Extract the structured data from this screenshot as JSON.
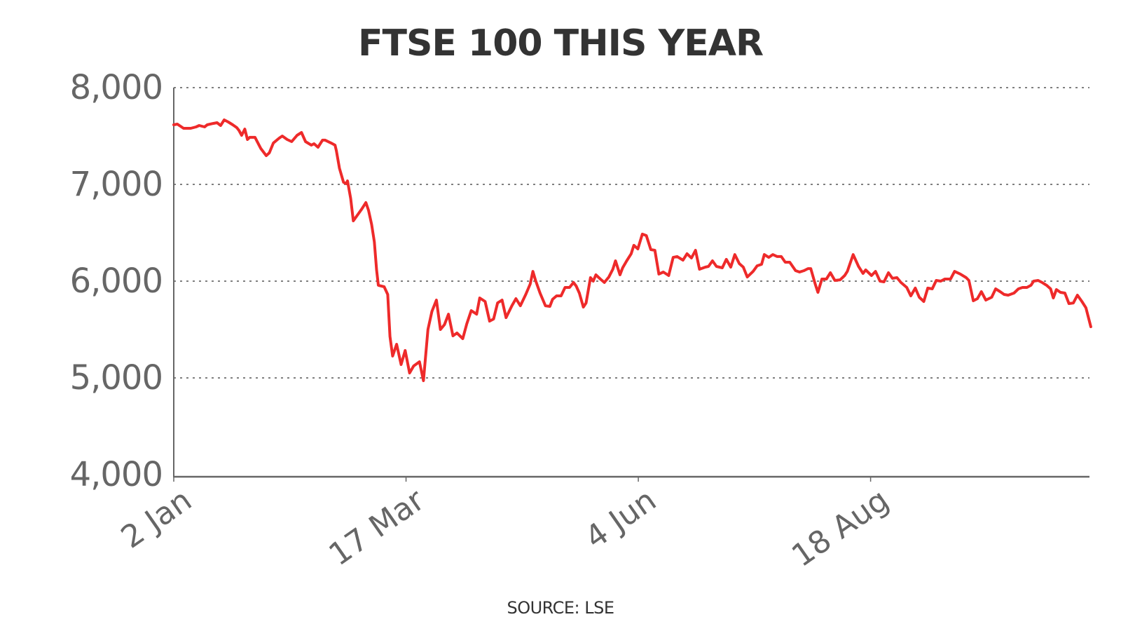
{
  "title": "FTSE 100 THIS YEAR",
  "source": "SOURCE: LSE",
  "colors": {
    "line": "#ee2a2a",
    "axis": "#666666",
    "grid": "#555555",
    "title": "#333333",
    "labels": "#666666"
  },
  "axes": {
    "y_ticks": [
      {
        "value": 8000,
        "label": "8,000"
      },
      {
        "value": 7000,
        "label": "7,000"
      },
      {
        "value": 6000,
        "label": "6,000"
      },
      {
        "value": 5000,
        "label": "5,000"
      },
      {
        "value": 4000,
        "label": "4,000"
      }
    ],
    "x_ticks": [
      {
        "x": 0,
        "label": "2 Jan"
      },
      {
        "x": 52,
        "label": "17 Mar"
      },
      {
        "x": 104,
        "label": "4 Jun"
      },
      {
        "x": 156,
        "label": "18 Aug"
      }
    ]
  },
  "chart_data": {
    "type": "line",
    "title": "FTSE 100 THIS YEAR",
    "xlabel": "",
    "ylabel": "",
    "ylim": [
      4000,
      8000
    ],
    "xlim": [
      0,
      205
    ],
    "grid": {
      "y": true,
      "x": false,
      "style": "dotted"
    },
    "legend": null,
    "annotations": [
      "SOURCE: LSE"
    ],
    "x_tick_labels": [
      "2 Jan",
      "17 Mar",
      "4 Jun",
      "18 Aug"
    ],
    "y_tick_labels": [
      "4,000",
      "5,000",
      "6,000",
      "7,000",
      "8,000"
    ],
    "series": [
      {
        "name": "FTSE 100",
        "x_unit": "trading days since 2 Jan",
        "points": [
          [
            0,
            7616
          ],
          [
            0.8,
            7623
          ],
          [
            2.2,
            7580
          ],
          [
            3.8,
            7580
          ],
          [
            5.0,
            7594
          ],
          [
            5.7,
            7609
          ],
          [
            6.9,
            7594
          ],
          [
            7.5,
            7616
          ],
          [
            8.8,
            7630
          ],
          [
            9.7,
            7638
          ],
          [
            10.5,
            7609
          ],
          [
            11.3,
            7667
          ],
          [
            12.2,
            7645
          ],
          [
            13.2,
            7616
          ],
          [
            14.1,
            7587
          ],
          [
            14.6,
            7558
          ],
          [
            15.2,
            7507
          ],
          [
            15.9,
            7572
          ],
          [
            16.5,
            7464
          ],
          [
            17.0,
            7486
          ],
          [
            18.2,
            7486
          ],
          [
            19.5,
            7370
          ],
          [
            20.7,
            7297
          ],
          [
            21.4,
            7326
          ],
          [
            22.3,
            7428
          ],
          [
            23.6,
            7478
          ],
          [
            24.3,
            7500
          ],
          [
            25.4,
            7464
          ],
          [
            26.4,
            7442
          ],
          [
            27.6,
            7507
          ],
          [
            28.6,
            7536
          ],
          [
            29.5,
            7442
          ],
          [
            30.8,
            7406
          ],
          [
            31.4,
            7420
          ],
          [
            32.3,
            7384
          ],
          [
            33.3,
            7457
          ],
          [
            33.9,
            7457
          ],
          [
            35.2,
            7428
          ],
          [
            36.1,
            7406
          ],
          [
            36.4,
            7348
          ],
          [
            37.1,
            7167
          ],
          [
            38.0,
            7022
          ],
          [
            38.6,
            7007
          ],
          [
            38.9,
            7036
          ],
          [
            39.6,
            6855
          ],
          [
            40.2,
            6623
          ],
          [
            41.1,
            6681
          ],
          [
            42.1,
            6746
          ],
          [
            43.0,
            6812
          ],
          [
            43.6,
            6732
          ],
          [
            44.3,
            6587
          ],
          [
            44.9,
            6406
          ],
          [
            45.4,
            6116
          ],
          [
            45.8,
            5957
          ],
          [
            47.1,
            5942
          ],
          [
            47.9,
            5862
          ],
          [
            48.4,
            5428
          ],
          [
            49.0,
            5225
          ],
          [
            49.9,
            5348
          ],
          [
            50.9,
            5138
          ],
          [
            51.8,
            5283
          ],
          [
            52.8,
            5051
          ],
          [
            53.7,
            5123
          ],
          [
            55.0,
            5167
          ],
          [
            55.9,
            4971
          ],
          [
            56.9,
            5500
          ],
          [
            57.8,
            5688
          ],
          [
            58.8,
            5804
          ],
          [
            59.7,
            5500
          ],
          [
            60.6,
            5551
          ],
          [
            61.5,
            5659
          ],
          [
            62.5,
            5435
          ],
          [
            63.4,
            5464
          ],
          [
            64.7,
            5406
          ],
          [
            65.6,
            5558
          ],
          [
            66.6,
            5696
          ],
          [
            67.8,
            5659
          ],
          [
            68.5,
            5826
          ],
          [
            69.7,
            5790
          ],
          [
            70.7,
            5587
          ],
          [
            71.6,
            5609
          ],
          [
            72.5,
            5775
          ],
          [
            73.5,
            5804
          ],
          [
            74.4,
            5623
          ],
          [
            75.7,
            5746
          ],
          [
            76.6,
            5819
          ],
          [
            77.6,
            5746
          ],
          [
            78.8,
            5862
          ],
          [
            79.8,
            5971
          ],
          [
            80.4,
            6101
          ],
          [
            81.0,
            6007
          ],
          [
            82.0,
            5877
          ],
          [
            83.2,
            5746
          ],
          [
            84.2,
            5739
          ],
          [
            84.8,
            5812
          ],
          [
            85.7,
            5848
          ],
          [
            86.7,
            5848
          ],
          [
            87.6,
            5935
          ],
          [
            88.6,
            5935
          ],
          [
            89.5,
            5986
          ],
          [
            90.1,
            5949
          ],
          [
            90.8,
            5877
          ],
          [
            91.7,
            5732
          ],
          [
            92.3,
            5775
          ],
          [
            93.3,
            6036
          ],
          [
            93.9,
            6000
          ],
          [
            94.5,
            6065
          ],
          [
            95.5,
            6022
          ],
          [
            96.4,
            5986
          ],
          [
            97.4,
            6043
          ],
          [
            98.3,
            6123
          ],
          [
            98.9,
            6210
          ],
          [
            99.9,
            6065
          ],
          [
            100.5,
            6138
          ],
          [
            101.4,
            6210
          ],
          [
            102.4,
            6283
          ],
          [
            103.0,
            6370
          ],
          [
            103.9,
            6333
          ],
          [
            104.9,
            6486
          ],
          [
            105.8,
            6471
          ],
          [
            106.8,
            6326
          ],
          [
            107.7,
            6319
          ],
          [
            108.6,
            6073
          ],
          [
            109.6,
            6094
          ],
          [
            110.8,
            6058
          ],
          [
            111.8,
            6246
          ],
          [
            112.7,
            6254
          ],
          [
            114.0,
            6217
          ],
          [
            114.9,
            6283
          ],
          [
            115.9,
            6239
          ],
          [
            116.8,
            6319
          ],
          [
            117.7,
            6123
          ],
          [
            119.0,
            6145
          ],
          [
            119.7,
            6152
          ],
          [
            120.6,
            6210
          ],
          [
            121.5,
            6152
          ],
          [
            122.8,
            6138
          ],
          [
            123.7,
            6225
          ],
          [
            124.7,
            6145
          ],
          [
            125.6,
            6275
          ],
          [
            126.6,
            6181
          ],
          [
            127.5,
            6145
          ],
          [
            128.4,
            6043
          ],
          [
            129.7,
            6101
          ],
          [
            130.6,
            6159
          ],
          [
            131.6,
            6174
          ],
          [
            132.2,
            6275
          ],
          [
            133.2,
            6246
          ],
          [
            134.1,
            6275
          ],
          [
            135.1,
            6254
          ],
          [
            136.0,
            6254
          ],
          [
            136.9,
            6196
          ],
          [
            137.9,
            6196
          ],
          [
            139.2,
            6109
          ],
          [
            140.1,
            6094
          ],
          [
            141.1,
            6109
          ],
          [
            142.0,
            6130
          ],
          [
            142.6,
            6130
          ],
          [
            143.6,
            5971
          ],
          [
            144.2,
            5884
          ],
          [
            145.1,
            6022
          ],
          [
            146.1,
            6022
          ],
          [
            147.0,
            6087
          ],
          [
            148.0,
            6007
          ],
          [
            149.2,
            6014
          ],
          [
            150.2,
            6058
          ],
          [
            150.8,
            6101
          ],
          [
            152.1,
            6275
          ],
          [
            153.3,
            6152
          ],
          [
            154.3,
            6080
          ],
          [
            154.9,
            6116
          ],
          [
            156.2,
            6058
          ],
          [
            157.1,
            6101
          ],
          [
            158.1,
            6000
          ],
          [
            159.0,
            5993
          ],
          [
            160.0,
            6087
          ],
          [
            160.9,
            6029
          ],
          [
            161.9,
            6036
          ],
          [
            162.8,
            5986
          ],
          [
            164.1,
            5935
          ],
          [
            165.0,
            5848
          ],
          [
            166.0,
            5928
          ],
          [
            166.9,
            5833
          ],
          [
            167.9,
            5790
          ],
          [
            168.8,
            5928
          ],
          [
            169.8,
            5920
          ],
          [
            170.7,
            6007
          ],
          [
            171.7,
            6000
          ],
          [
            172.6,
            6022
          ],
          [
            173.9,
            6022
          ],
          [
            174.8,
            6101
          ],
          [
            176.1,
            6073
          ],
          [
            177.4,
            6036
          ],
          [
            178.0,
            6007
          ],
          [
            179.0,
            5797
          ],
          [
            179.9,
            5819
          ],
          [
            180.8,
            5891
          ],
          [
            181.8,
            5804
          ],
          [
            183.1,
            5833
          ],
          [
            184.0,
            5920
          ],
          [
            185.0,
            5891
          ],
          [
            185.9,
            5862
          ],
          [
            186.8,
            5855
          ],
          [
            188.1,
            5877
          ],
          [
            189.1,
            5920
          ],
          [
            190.0,
            5935
          ],
          [
            191.0,
            5935
          ],
          [
            191.9,
            5957
          ],
          [
            192.5,
            6000
          ],
          [
            193.5,
            6007
          ],
          [
            194.4,
            5986
          ],
          [
            195.4,
            5957
          ],
          [
            196.3,
            5920
          ],
          [
            196.9,
            5826
          ],
          [
            197.6,
            5913
          ],
          [
            198.5,
            5884
          ],
          [
            199.5,
            5877
          ],
          [
            200.4,
            5768
          ],
          [
            201.4,
            5775
          ],
          [
            202.3,
            5855
          ],
          [
            203.3,
            5790
          ],
          [
            204.2,
            5725
          ],
          [
            205.3,
            5529
          ]
        ]
      }
    ]
  }
}
